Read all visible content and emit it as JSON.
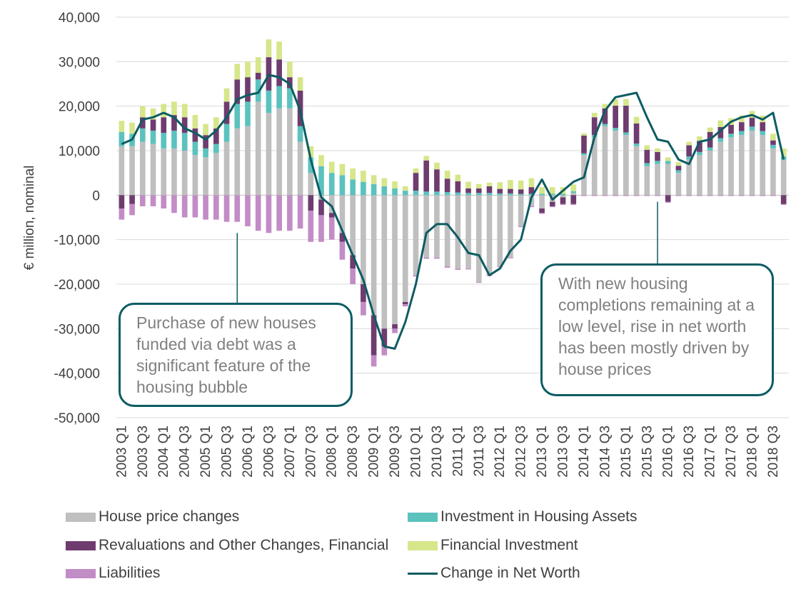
{
  "chart_data": {
    "type": "bar",
    "stacked": true,
    "ylabel": "€ million, nominal",
    "ylim": [
      -50000,
      40000
    ],
    "yticks": [
      40000,
      30000,
      20000,
      10000,
      0,
      -10000,
      -20000,
      -30000,
      -40000,
      -50000
    ],
    "ytick_labels": [
      "40,000",
      "30,000",
      "20,000",
      "10,000",
      "0",
      "-10,000",
      "-20,000",
      "-30,000",
      "-40,000",
      "-50,000"
    ],
    "categories": [
      "2003 Q1",
      "2003 Q2",
      "2003 Q3",
      "2003 Q4",
      "2004 Q1",
      "2004 Q2",
      "2004 Q3",
      "2004 Q4",
      "2005 Q1",
      "2005 Q2",
      "2005 Q3",
      "2005 Q4",
      "2006 Q1",
      "2006 Q2",
      "2006 Q3",
      "2006 Q4",
      "2007 Q1",
      "2007 Q2",
      "2007 Q3",
      "2007 Q4",
      "2008 Q1",
      "2008 Q2",
      "2008 Q3",
      "2008 Q4",
      "2009 Q1",
      "2009 Q2",
      "2009 Q3",
      "2009 Q4",
      "2010 Q1",
      "2010 Q2",
      "2010 Q3",
      "2010 Q4",
      "2011 Q1",
      "2011 Q2",
      "2011 Q3",
      "2011 Q4",
      "2012 Q1",
      "2012 Q2",
      "2012 Q3",
      "2012 Q4",
      "2013 Q1",
      "2013 Q2",
      "2013 Q3",
      "2013 Q4",
      "2014 Q1",
      "2014 Q2",
      "2014 Q3",
      "2014 Q4",
      "2015 Q1",
      "2015 Q2",
      "2015 Q3",
      "2015 Q4",
      "2016 Q1",
      "2016 Q2",
      "2016 Q3",
      "2016 Q4",
      "2017 Q1",
      "2017 Q2",
      "2017 Q3",
      "2017 Q4",
      "2018 Q1",
      "2018 Q2",
      "2018 Q3",
      "2018 Q4"
    ],
    "xtick_labels": [
      "2003 Q1",
      "2003 Q3",
      "2004 Q1",
      "2004 Q3",
      "2005 Q1",
      "2005 Q3",
      "2006 Q1",
      "2006 Q3",
      "2007 Q1",
      "2007 Q3",
      "2008 Q1",
      "2008 Q3",
      "2009 Q1",
      "2009 Q3",
      "2010 Q1",
      "2010 Q3",
      "2011 Q1",
      "2011 Q3",
      "2012 Q1",
      "2012 Q3",
      "2013 Q1",
      "2013 Q3",
      "2014 Q1",
      "2014 Q3",
      "2015 Q1",
      "2015 Q3",
      "2016 Q1",
      "2016 Q3",
      "2017 Q1",
      "2017 Q3",
      "2018 Q1",
      "2018 Q3"
    ],
    "series": [
      {
        "name": "House price changes",
        "color": "#bfbfbf",
        "type": "bar",
        "values": [
          11000,
          11000,
          12000,
          11500,
          10500,
          10500,
          10000,
          9000,
          8500,
          9500,
          12000,
          15000,
          15500,
          21000,
          18500,
          19500,
          19500,
          12000,
          5000,
          -1000,
          -4000,
          -8500,
          -13500,
          -20000,
          -27000,
          -30000,
          -29000,
          -24000,
          -18000,
          -14000,
          -14000,
          -16000,
          -16500,
          -16500,
          -19500,
          -18000,
          -16000,
          -14000,
          -7000,
          -2500,
          -3000,
          -1500,
          -500,
          500,
          9000,
          13000,
          15500,
          14500,
          13500,
          11000,
          6500,
          7000,
          7000,
          5000,
          8000,
          9000,
          10000,
          12000,
          13000,
          13500,
          14500,
          13500,
          10500,
          8000
        ]
      },
      {
        "name": "Investment in Housing Assets",
        "color": "#5bc2be",
        "type": "bar",
        "values": [
          3200,
          2800,
          3000,
          3000,
          3500,
          4000,
          4000,
          3000,
          2000,
          2000,
          4000,
          5500,
          5500,
          5000,
          5000,
          5000,
          4500,
          3500,
          3500,
          6500,
          5000,
          4500,
          3500,
          3000,
          2500,
          2000,
          1500,
          1000,
          1000,
          800,
          800,
          700,
          600,
          500,
          500,
          500,
          400,
          400,
          300,
          300,
          300,
          300,
          300,
          400,
          400,
          500,
          500,
          600,
          600,
          600,
          700,
          700,
          700,
          600,
          700,
          700,
          700,
          800,
          800,
          900,
          900,
          900,
          800,
          700
        ]
      },
      {
        "name": "Revaluations and Other Changes, Financial",
        "color": "#6e3c6e",
        "type": "bar",
        "values": [
          -3000,
          -2000,
          2500,
          2500,
          3500,
          3500,
          3500,
          3000,
          3000,
          3500,
          5000,
          5500,
          5500,
          1500,
          7500,
          6000,
          2500,
          8000,
          -3500,
          -3500,
          -1000,
          -2000,
          -3000,
          -4000,
          -9000,
          -4000,
          -1000,
          -500,
          4000,
          7000,
          5000,
          3000,
          2500,
          1000,
          1000,
          1500,
          1000,
          1000,
          1000,
          1500,
          -1000,
          -1000,
          -1500,
          -2000,
          4000,
          4000,
          3500,
          5000,
          6000,
          4500,
          3000,
          2000,
          -1500,
          1000,
          2500,
          2500,
          3500,
          2500,
          2000,
          2000,
          2000,
          2000,
          1000,
          -2000
        ]
      },
      {
        "name": "Financial Investment",
        "color": "#d6e68a",
        "type": "bar",
        "values": [
          2500,
          2500,
          2500,
          2500,
          3000,
          3000,
          3000,
          3000,
          2500,
          2500,
          3000,
          3500,
          3500,
          3500,
          4000,
          4000,
          3500,
          3000,
          2500,
          2500,
          2500,
          2500,
          2500,
          2500,
          2000,
          1800,
          1600,
          1000,
          1000,
          1000,
          1500,
          1800,
          1500,
          1500,
          1000,
          800,
          1500,
          2000,
          2000,
          2000,
          1500,
          1500,
          1500,
          1500,
          500,
          1000,
          1000,
          1500,
          1500,
          1500,
          1000,
          800,
          800,
          800,
          800,
          1000,
          1000,
          1500,
          1500,
          1500,
          1500,
          1500,
          1500,
          1800
        ]
      },
      {
        "name": "Liabilities",
        "color": "#c28cc6",
        "type": "bar",
        "values": [
          -2500,
          -2500,
          -2500,
          -2500,
          -3000,
          -4000,
          -5000,
          -5000,
          -5500,
          -5500,
          -6000,
          -6000,
          -7000,
          -8000,
          -8500,
          -8000,
          -8000,
          -7500,
          -7000,
          -6000,
          -5000,
          -4000,
          -3500,
          -3000,
          -2500,
          -2000,
          -1000,
          -500,
          -300,
          -300,
          -300,
          -300,
          -300,
          -200,
          -200,
          -200,
          -200,
          -200,
          -200,
          -200,
          -200,
          -200,
          -200,
          -200,
          -200,
          -200,
          -200,
          -200,
          -200,
          -200,
          -200,
          -200,
          -200,
          -200,
          -200,
          -200,
          -200,
          -200,
          -200,
          -200,
          -200,
          -200,
          -200,
          -200
        ]
      },
      {
        "name": "Change in Net Worth",
        "color": "#0d5c63",
        "type": "line",
        "values": [
          11500,
          12500,
          17000,
          17500,
          18500,
          17500,
          15000,
          14000,
          12500,
          14500,
          17500,
          21500,
          22500,
          23000,
          27000,
          26500,
          25000,
          19000,
          8000,
          -500,
          -2500,
          -8000,
          -13500,
          -19000,
          -27000,
          -34000,
          -34500,
          -28500,
          -20000,
          -8500,
          -6500,
          -6500,
          -9500,
          -13000,
          -13500,
          -18000,
          -16500,
          -12500,
          -10000,
          -500,
          3500,
          -1000,
          1000,
          3000,
          4000,
          13000,
          19000,
          22000,
          22500,
          23000,
          17500,
          12500,
          12000,
          8000,
          7000,
          12000,
          12500,
          14500,
          16500,
          17500,
          18000,
          17000,
          18500,
          8000
        ]
      }
    ],
    "legend": [
      {
        "label": "House price changes",
        "kind": "bar",
        "color": "#bfbfbf"
      },
      {
        "label": "Investment in Housing Assets",
        "kind": "bar",
        "color": "#5bc2be"
      },
      {
        "label": "Revaluations and Other Changes, Financial",
        "kind": "bar",
        "color": "#6e3c6e"
      },
      {
        "label": "Financial Investment",
        "kind": "bar",
        "color": "#d6e68a"
      },
      {
        "label": "Liabilities",
        "kind": "bar",
        "color": "#c28cc6"
      },
      {
        "label": "Change in Net Worth",
        "kind": "line",
        "color": "#0d5c63"
      }
    ],
    "annotations": [
      {
        "text": "Purchase of new houses funded via debt was a significant feature of the housing bubble",
        "points_to": "2005 Q4"
      },
      {
        "text": "With new housing completions remaining at a low level, rise in net worth has been mostly driven by house prices",
        "points_to": "2015 Q4"
      }
    ]
  }
}
